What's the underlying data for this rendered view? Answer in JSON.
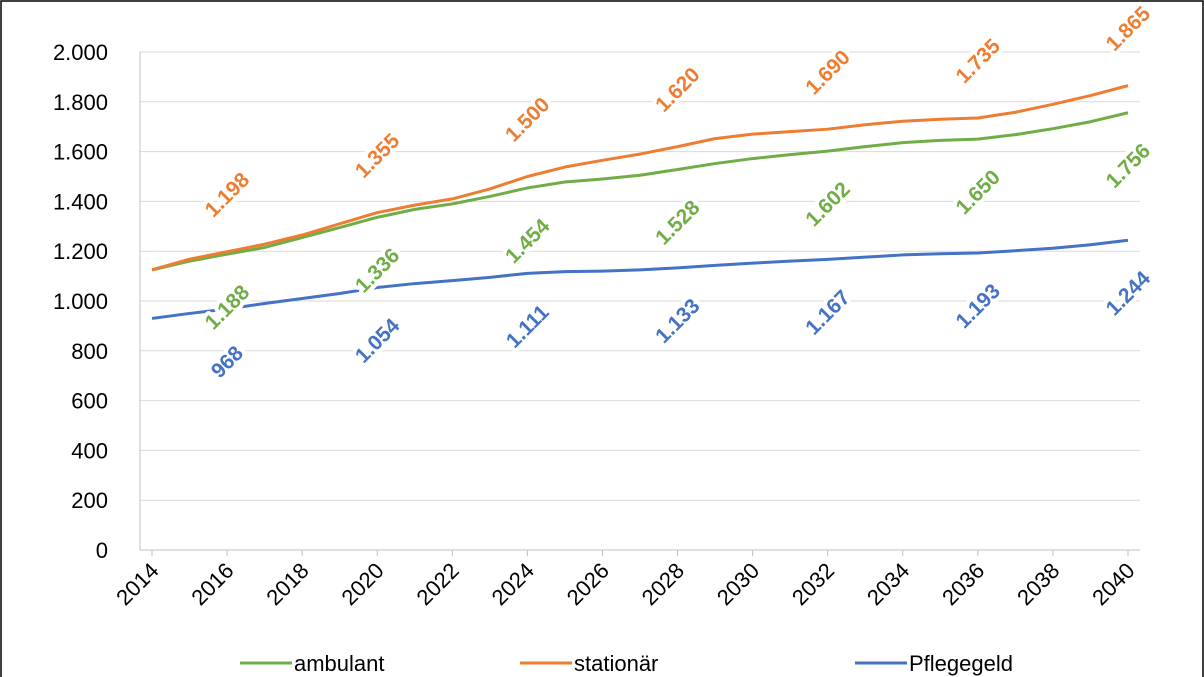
{
  "chart_data": {
    "type": "line",
    "x": [
      2014,
      2015,
      2016,
      2017,
      2018,
      2019,
      2020,
      2021,
      2022,
      2023,
      2024,
      2025,
      2026,
      2027,
      2028,
      2029,
      2030,
      2031,
      2032,
      2033,
      2034,
      2035,
      2036,
      2037,
      2038,
      2039,
      2040
    ],
    "xlim": [
      2014,
      2040
    ],
    "xticks": [
      2014,
      2016,
      2018,
      2020,
      2022,
      2024,
      2026,
      2028,
      2030,
      2032,
      2034,
      2036,
      2038,
      2040
    ],
    "ylim": [
      0,
      2000
    ],
    "yticks": [
      0,
      200,
      400,
      600,
      800,
      {
        "value": 1000,
        "label": "1.000"
      },
      {
        "value": 1200,
        "label": "1.200"
      },
      {
        "value": 1400,
        "label": "1.400"
      },
      {
        "value": 1600,
        "label": "1.600"
      },
      {
        "value": 1800,
        "label": "1.800"
      },
      {
        "value": 2000,
        "label": "2.000"
      }
    ],
    "grid": true,
    "legend": "bottom",
    "series": [
      {
        "name": "ambulant",
        "color": "#70ad47",
        "values": [
          1125,
          1160,
          1188,
          1215,
          1255,
          1295,
          1336,
          1368,
          1390,
          1420,
          1454,
          1478,
          1490,
          1505,
          1528,
          1552,
          1572,
          1588,
          1602,
          1620,
          1636,
          1645,
          1650,
          1668,
          1692,
          1720,
          1756
        ],
        "value_labels": [
          null,
          null,
          "1.188",
          null,
          null,
          null,
          "1.336",
          null,
          null,
          null,
          "1.454",
          null,
          null,
          null,
          "1.528",
          null,
          null,
          null,
          "1.602",
          null,
          null,
          null,
          "1.650",
          null,
          null,
          null,
          "1.756"
        ]
      },
      {
        "name": "stationär",
        "color": "#ed7d31",
        "values": [
          1125,
          1168,
          1198,
          1228,
          1265,
          1310,
          1355,
          1385,
          1410,
          1450,
          1500,
          1538,
          1565,
          1590,
          1620,
          1652,
          1670,
          1680,
          1690,
          1708,
          1722,
          1730,
          1735,
          1758,
          1790,
          1825,
          1865
        ],
        "value_labels": [
          null,
          null,
          "1.198",
          null,
          null,
          null,
          "1.355",
          null,
          null,
          null,
          "1.500",
          null,
          null,
          null,
          "1.620",
          null,
          null,
          null,
          "1.690",
          null,
          null,
          null,
          "1.735",
          null,
          null,
          null,
          "1.865"
        ]
      },
      {
        "name": "Pflegegeld",
        "color": "#4472c4",
        "values": [
          930,
          950,
          968,
          990,
          1010,
          1030,
          1054,
          1070,
          1082,
          1095,
          1111,
          1118,
          1120,
          1125,
          1133,
          1143,
          1152,
          1160,
          1167,
          1176,
          1185,
          1190,
          1193,
          1202,
          1212,
          1226,
          1244
        ],
        "value_labels": [
          null,
          null,
          "968",
          null,
          null,
          null,
          "1.054",
          null,
          null,
          null,
          "1.111",
          null,
          null,
          null,
          "1.133",
          null,
          null,
          null,
          "1.167",
          null,
          null,
          null,
          "1.193",
          null,
          null,
          null,
          "1.244"
        ]
      }
    ]
  }
}
